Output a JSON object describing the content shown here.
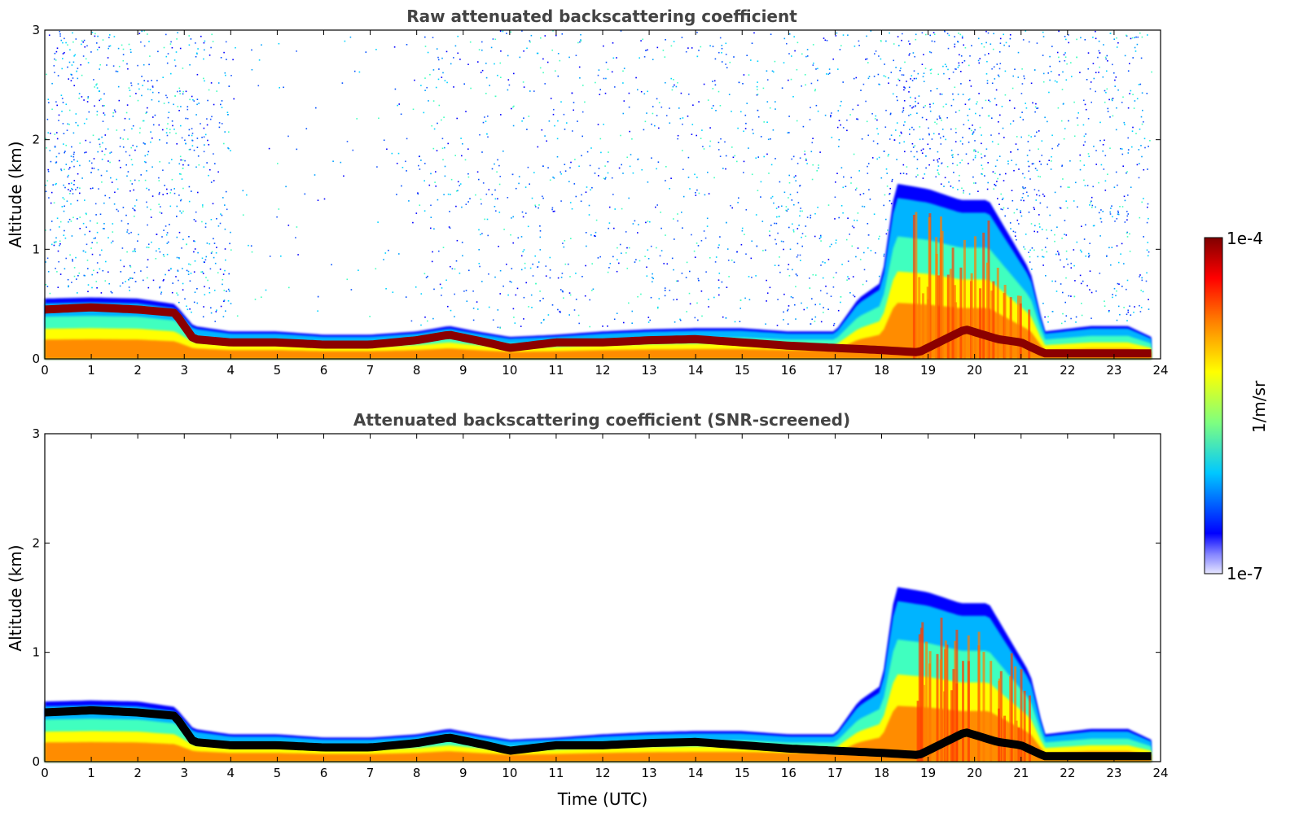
{
  "chart_data": [
    {
      "type": "heatmap",
      "title": "Raw attenuated backscattering coefficient",
      "xlabel": "",
      "ylabel": "Altitude (km)",
      "xlim": [
        0,
        24
      ],
      "ylim": [
        0,
        3
      ],
      "xticks": [
        "0",
        "1",
        "2",
        "3",
        "4",
        "5",
        "6",
        "7",
        "8",
        "9",
        "10",
        "11",
        "12",
        "13",
        "14",
        "15",
        "16",
        "17",
        "18",
        "19",
        "20",
        "21",
        "22",
        "23",
        "24"
      ],
      "yticks": [
        "0",
        "1",
        "2",
        "3"
      ],
      "grid": false,
      "layers": {
        "layer_top_km": [
          [
            0,
            0.55
          ],
          [
            1,
            0.56
          ],
          [
            2,
            0.55
          ],
          [
            2.8,
            0.5
          ],
          [
            3.2,
            0.3
          ],
          [
            4,
            0.25
          ],
          [
            5,
            0.25
          ],
          [
            6,
            0.22
          ],
          [
            7,
            0.22
          ],
          [
            8,
            0.25
          ],
          [
            8.7,
            0.3
          ],
          [
            9.3,
            0.25
          ],
          [
            10,
            0.2
          ],
          [
            11,
            0.22
          ],
          [
            12,
            0.25
          ],
          [
            13,
            0.27
          ],
          [
            14,
            0.28
          ],
          [
            15,
            0.28
          ],
          [
            16,
            0.25
          ],
          [
            17,
            0.25
          ],
          [
            17.5,
            0.55
          ],
          [
            18,
            0.7
          ],
          [
            18.3,
            1.6
          ],
          [
            19,
            1.55
          ],
          [
            19.7,
            1.45
          ],
          [
            20.3,
            1.45
          ],
          [
            21.2,
            0.8
          ],
          [
            21.5,
            0.25
          ],
          [
            22.5,
            0.3
          ],
          [
            23.3,
            0.3
          ],
          [
            23.8,
            0.2
          ]
        ],
        "peak_layer_km": [
          [
            0,
            0.45
          ],
          [
            1,
            0.47
          ],
          [
            2,
            0.45
          ],
          [
            2.8,
            0.42
          ],
          [
            3.2,
            0.18
          ],
          [
            4,
            0.15
          ],
          [
            5,
            0.15
          ],
          [
            6,
            0.13
          ],
          [
            7,
            0.13
          ],
          [
            8,
            0.17
          ],
          [
            8.7,
            0.22
          ],
          [
            9.5,
            0.15
          ],
          [
            10,
            0.1
          ],
          [
            11,
            0.15
          ],
          [
            12,
            0.15
          ],
          [
            13,
            0.17
          ],
          [
            14,
            0.18
          ],
          [
            15,
            0.15
          ],
          [
            16,
            0.12
          ],
          [
            17,
            0.1
          ],
          [
            18,
            0.08
          ],
          [
            18.8,
            0.06
          ],
          [
            19.8,
            0.27
          ],
          [
            20.5,
            0.18
          ],
          [
            21,
            0.15
          ],
          [
            21.5,
            0.05
          ],
          [
            23.8,
            0.05
          ]
        ]
      }
    },
    {
      "type": "heatmap",
      "title": "Attenuated backscattering coefficient (SNR-screened)",
      "xlabel": "Time (UTC)",
      "ylabel": "Altitude (km)",
      "xlim": [
        0,
        24
      ],
      "ylim": [
        0,
        3
      ],
      "xticks": [
        "0",
        "1",
        "2",
        "3",
        "4",
        "5",
        "6",
        "7",
        "8",
        "9",
        "10",
        "11",
        "12",
        "13",
        "14",
        "15",
        "16",
        "17",
        "18",
        "19",
        "20",
        "21",
        "22",
        "23",
        "24"
      ],
      "yticks": [
        "0",
        "1",
        "2",
        "3"
      ],
      "grid": false
    }
  ],
  "colorbar": {
    "min_label": "1e-7",
    "max_label": "1e-4",
    "unit_label": "1/m/sr",
    "colormap": "jet",
    "colors": [
      "#e6e6ff",
      "#0000ff",
      "#00c8ff",
      "#7fff7f",
      "#ffff00",
      "#ff8000",
      "#ff0000",
      "#800000"
    ]
  }
}
